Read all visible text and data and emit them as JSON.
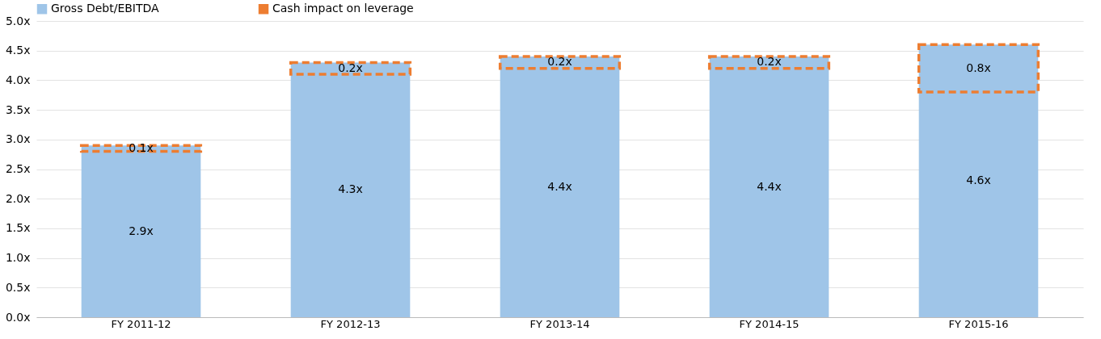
{
  "chart_data": {
    "type": "bar",
    "categories": [
      "FY 2011-12",
      "FY 2012-13",
      "FY 2013-14",
      "FY 2014-15",
      "FY 2015-16"
    ],
    "series": [
      {
        "name": "Gross Debt/EBITDA",
        "type": "bar",
        "color": "#9fc5e8",
        "values": [
          2.9,
          4.3,
          4.4,
          4.4,
          4.6
        ],
        "value_labels": [
          "2.9x",
          "4.3x",
          "4.4x",
          "4.4x",
          "4.6x"
        ]
      },
      {
        "name": "Cash impact on leverage",
        "type": "bar",
        "color": "#ed7d31",
        "line_style": "dashed",
        "base": [
          2.8,
          4.1,
          4.2,
          4.2,
          3.8
        ],
        "values": [
          0.1,
          0.2,
          0.2,
          0.2,
          0.8
        ],
        "value_labels": [
          "0.1x",
          "0.2x",
          "0.2x",
          "0.2x",
          "0.8x"
        ]
      }
    ],
    "ylim": [
      0,
      5
    ],
    "yticks": [
      {
        "value": 0,
        "label": "0.0x"
      },
      {
        "value": 0.5,
        "label": "0.5x"
      },
      {
        "value": 1,
        "label": "1.0x"
      },
      {
        "value": 1.5,
        "label": "1.5x"
      },
      {
        "value": 2,
        "label": "2.0x"
      },
      {
        "value": 2.5,
        "label": "2.5x"
      },
      {
        "value": 3,
        "label": "3.0x"
      },
      {
        "value": 3.5,
        "label": "3.5x"
      },
      {
        "value": 4,
        "label": "4.0x"
      },
      {
        "value": 4.5,
        "label": "4.5x"
      },
      {
        "value": 5,
        "label": "5.0x"
      }
    ],
    "grid": "y",
    "legend": "top"
  }
}
